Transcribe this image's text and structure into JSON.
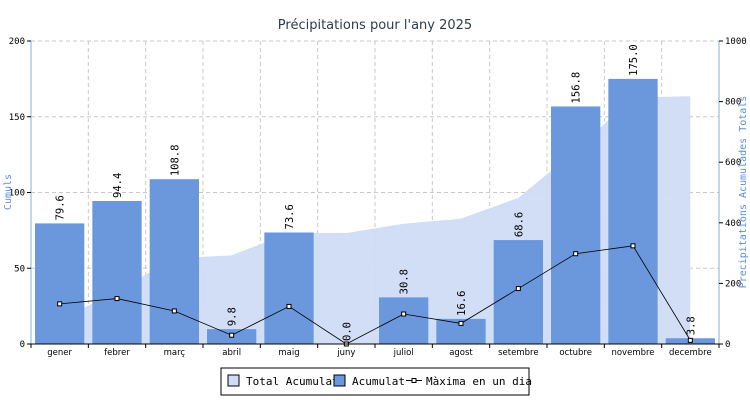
{
  "chart_data": {
    "type": "bar",
    "title": "Précipitations pour l'any 2025",
    "ylabel_left": "Cumuls",
    "ylabel_right": "Precipitations Acumulades Totals",
    "ylim_left": [
      0,
      200
    ],
    "ylim_right": [
      0,
      1000
    ],
    "yticks_left": [
      0,
      50,
      100,
      150,
      200
    ],
    "yticks_right": [
      0,
      200,
      400,
      600,
      800,
      1000
    ],
    "grid": true,
    "legend_position": "bottom",
    "categories": [
      "gener",
      "febrer",
      "març",
      "abril",
      "maig",
      "juny",
      "juliol",
      "agost",
      "setembre",
      "octubre",
      "novembre",
      "decembre"
    ],
    "series": [
      {
        "name": "Total Acumulat",
        "type": "area",
        "axis": "right",
        "color": "#cfdcf6",
        "values": [
          79.6,
          174.0,
          282.8,
          292.6,
          366.2,
          366.2,
          397.0,
          413.6,
          482.2,
          639.0,
          814.0,
          817.8
        ]
      },
      {
        "name": "Acumulat",
        "type": "bar",
        "axis": "left",
        "color": "#6b97dc",
        "values": [
          79.6,
          94.4,
          108.8,
          9.8,
          73.6,
          0.0,
          30.8,
          16.6,
          68.6,
          156.8,
          175.0,
          3.8
        ],
        "labels": [
          "79.6",
          "94.4",
          "108.8",
          "9.8",
          "73.6",
          "0.0",
          "30.8",
          "16.6",
          "68.6",
          "156.8",
          "175.0",
          "3.8"
        ]
      },
      {
        "name": "Màxima en un dia",
        "type": "line",
        "axis": "left",
        "color": "#000000",
        "values": [
          26.5,
          30.0,
          21.8,
          5.8,
          24.8,
          0.0,
          19.8,
          13.6,
          36.6,
          59.6,
          64.8,
          2.4
        ]
      }
    ]
  },
  "legend": {
    "total_label": "Total Acumulat",
    "acumulat_label": "Acumulat",
    "max_label": "Màxima en un dia"
  }
}
